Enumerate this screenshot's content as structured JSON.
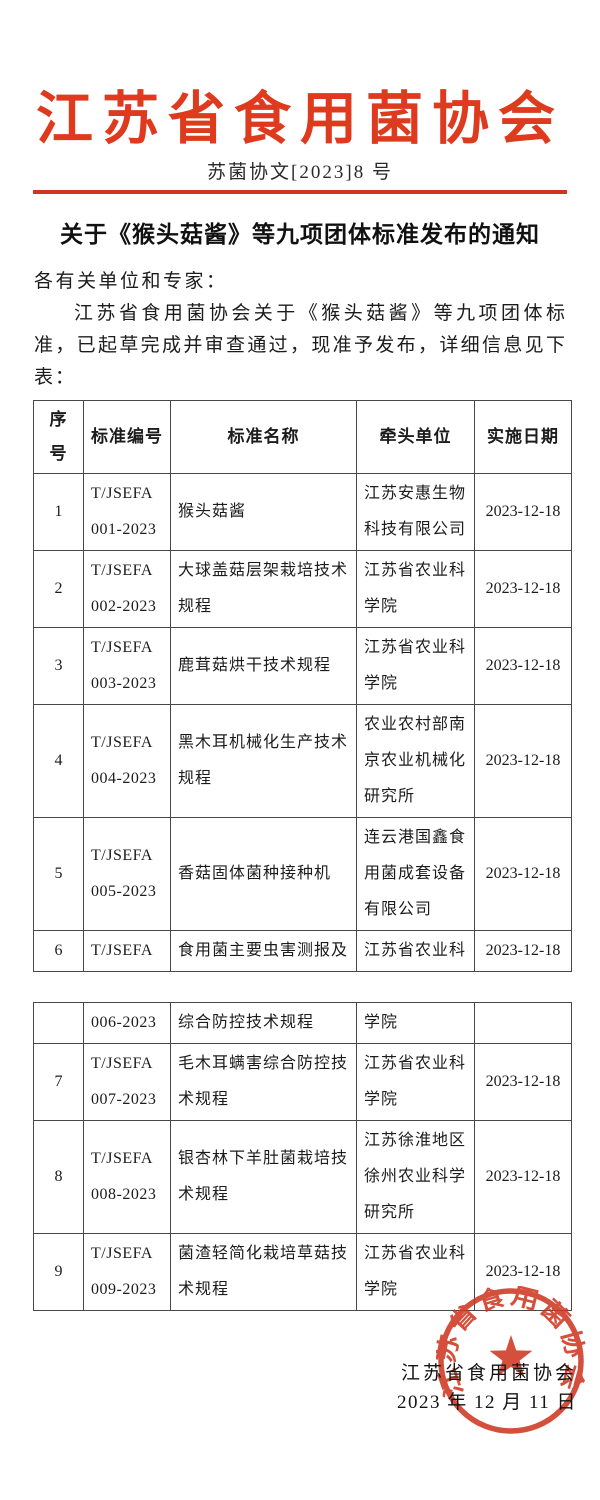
{
  "masthead": {
    "org_name": "江苏省食用菌协会",
    "doc_number": "苏菌协文[2023]8 号",
    "accent_color": "#dd3a1e"
  },
  "notice": {
    "title": "关于《猴头菇酱》等九项团体标准发布的通知",
    "salutation": "各有关单位和专家：",
    "body": "江苏省食用菌协会关于《猴头菇酱》等九项团体标准，已起草完成并审查通过，现准予发布，详细信息见下表："
  },
  "table": {
    "headers": [
      "序号",
      "标准编号",
      "标准名称",
      "牵头单位",
      "实施日期"
    ],
    "part1_rows": [
      [
        "1",
        "T/JSEFA\n001-2023",
        "猴头菇酱",
        "江苏安惠生物\n科技有限公司",
        "2023-12-18"
      ],
      [
        "2",
        "T/JSEFA\n002-2023",
        "大球盖菇层架栽培技术\n规程",
        "江苏省农业科\n学院",
        "2023-12-18"
      ],
      [
        "3",
        "T/JSEFA\n003-2023",
        "鹿茸菇烘干技术规程",
        "江苏省农业科\n学院",
        "2023-12-18"
      ],
      [
        "4",
        "T/JSEFA\n004-2023",
        "黑木耳机械化生产技术\n规程",
        "农业农村部南\n京农业机械化\n研究所",
        "2023-12-18"
      ],
      [
        "5",
        "T/JSEFA\n005-2023",
        "香菇固体菌种接种机",
        "连云港国鑫食\n用菌成套设备\n有限公司",
        "2023-12-18"
      ],
      [
        "6",
        "T/JSEFA",
        "食用菌主要虫害测报及",
        "江苏省农业科",
        "2023-12-18"
      ]
    ],
    "part2_rows": [
      [
        "",
        "006-2023",
        "综合防控技术规程",
        "学院",
        ""
      ],
      [
        "7",
        "T/JSEFA\n007-2023",
        "毛木耳螨害综合防控技\n术规程",
        "江苏省农业科\n学院",
        "2023-12-18"
      ],
      [
        "8",
        "T/JSEFA\n008-2023",
        "银杏林下羊肚菌栽培技\n术规程",
        "江苏徐淮地区\n徐州农业科学\n研究所",
        "2023-12-18"
      ],
      [
        "9",
        "T/JSEFA\n009-2023",
        "菌渣轻简化栽培草菇技\n术规程",
        "江苏省农业科\n学院",
        "2023-12-18"
      ]
    ]
  },
  "signature": {
    "org_name": "江苏省食用菌协会",
    "date": "2023 年 12 月 11 日"
  },
  "seal": {
    "text": "江苏省食用菌协会",
    "color": "#cf3722"
  }
}
